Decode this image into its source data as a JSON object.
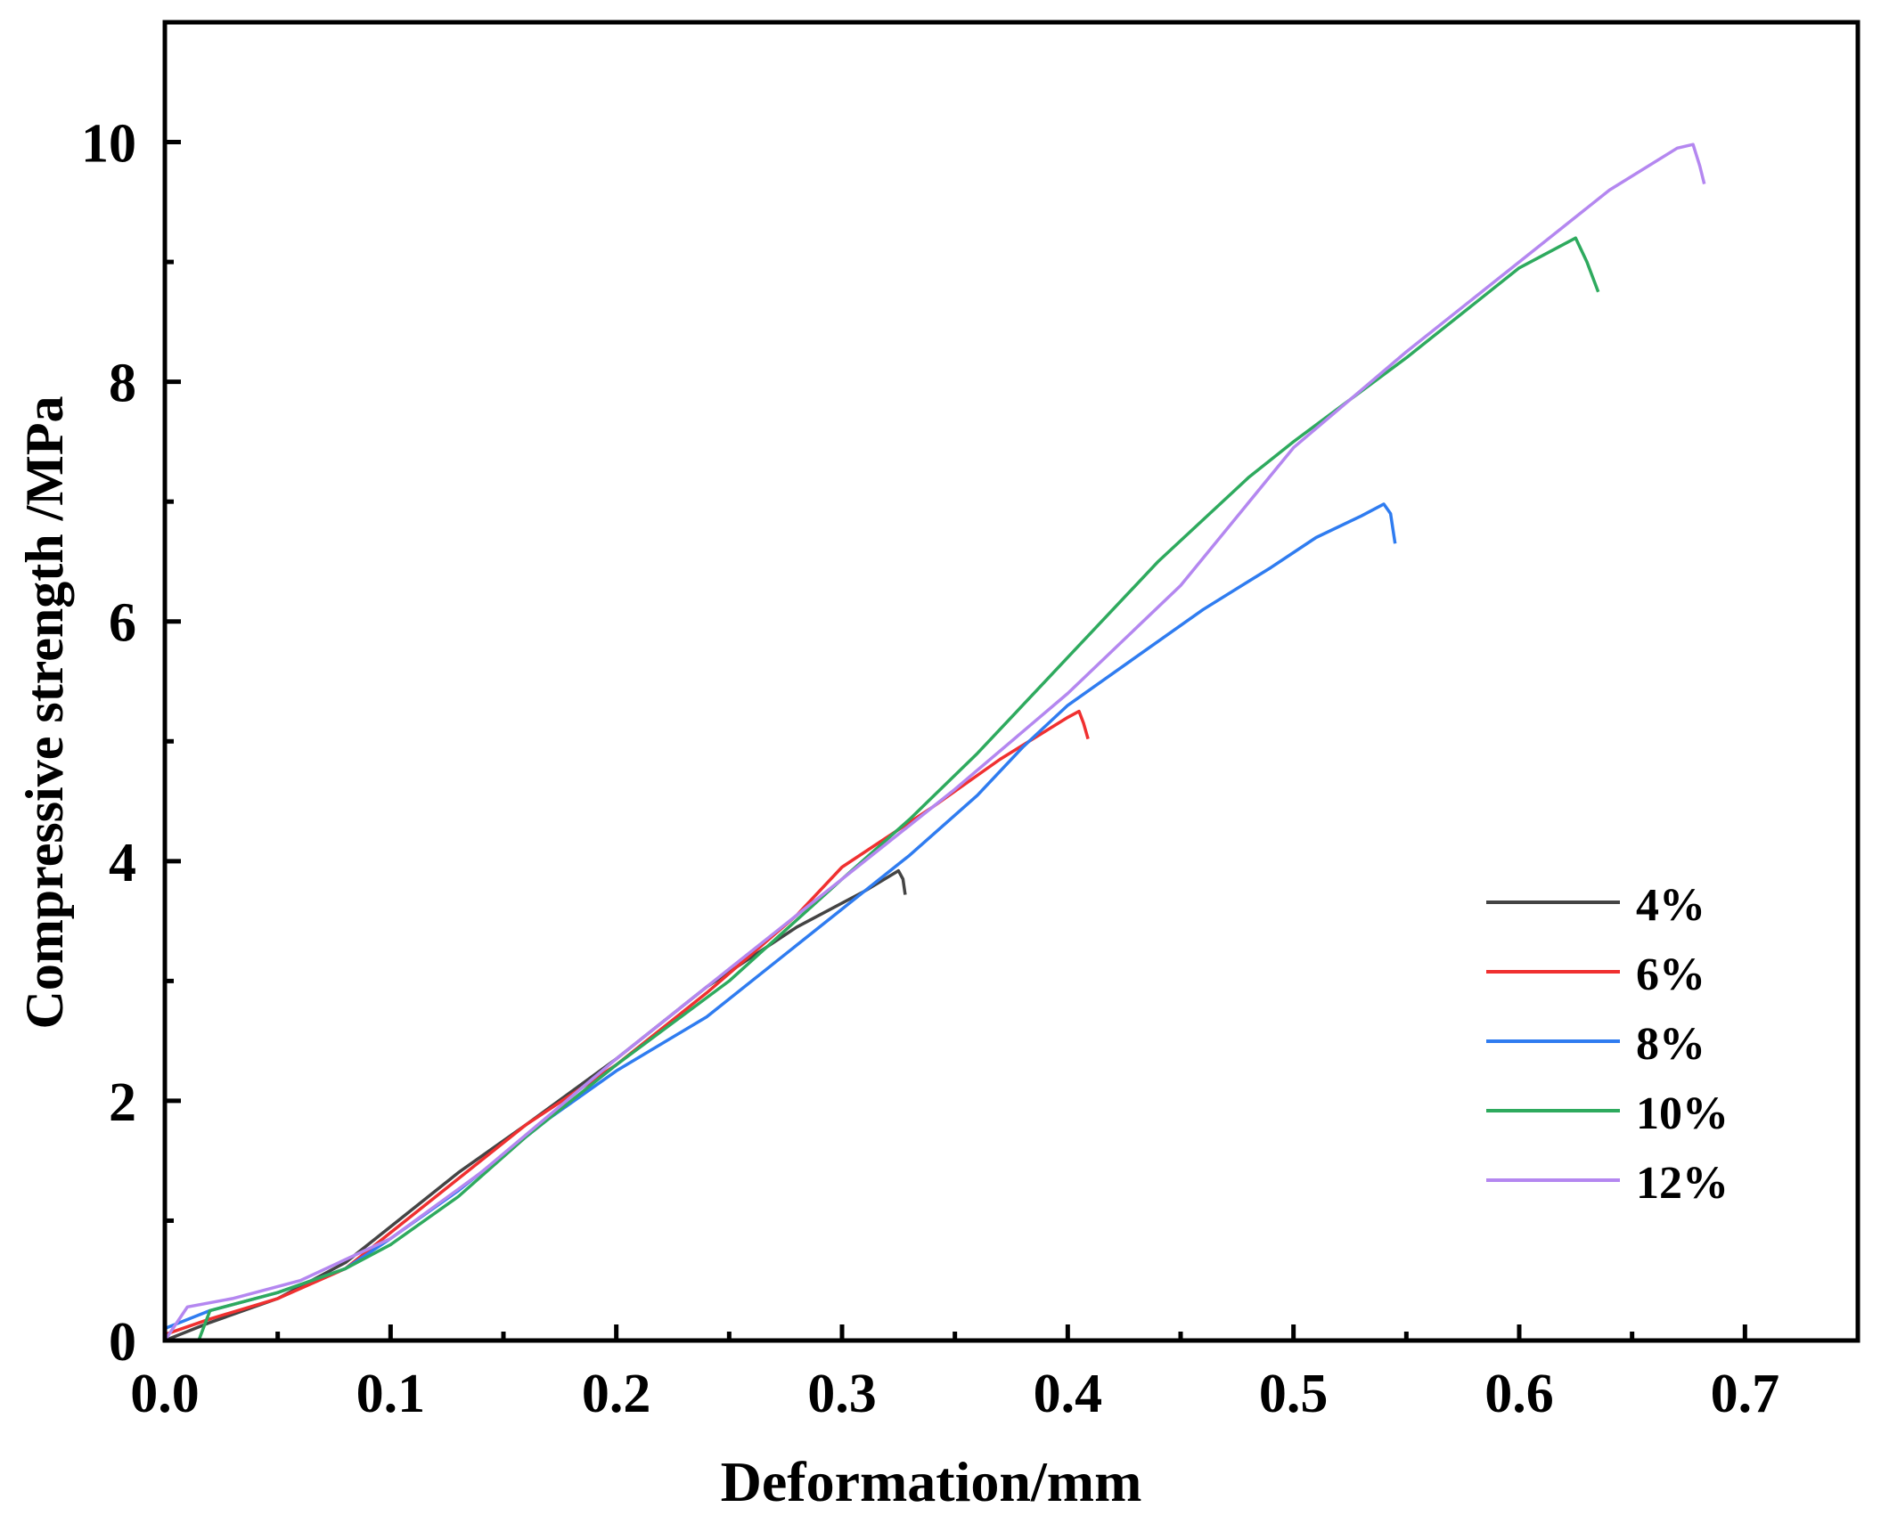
{
  "chart_data": {
    "type": "line",
    "xlabel": "Deformation/mm",
    "ylabel": "Compressive strength /MPa",
    "xlim": [
      0.0,
      0.75
    ],
    "ylim": [
      0,
      11
    ],
    "x_ticks": [
      "0.0",
      "0.1",
      "0.2",
      "0.3",
      "0.4",
      "0.5",
      "0.6",
      "0.7"
    ],
    "y_ticks": [
      "0",
      "2",
      "4",
      "6",
      "8",
      "10"
    ],
    "legend_position": "bottom-right",
    "series": [
      {
        "name": "4%",
        "color": "#444444",
        "x": [
          0.0,
          0.02,
          0.05,
          0.08,
          0.1,
          0.13,
          0.16,
          0.2,
          0.24,
          0.28,
          0.31,
          0.325,
          0.327,
          0.328
        ],
        "y": [
          0.0,
          0.15,
          0.35,
          0.65,
          0.95,
          1.4,
          1.8,
          2.35,
          2.95,
          3.45,
          3.75,
          3.92,
          3.85,
          3.72
        ]
      },
      {
        "name": "6%",
        "color": "#f03030",
        "x": [
          0.0,
          0.02,
          0.05,
          0.08,
          0.1,
          0.13,
          0.16,
          0.2,
          0.24,
          0.28,
          0.3,
          0.34,
          0.37,
          0.4,
          0.405,
          0.407,
          0.409
        ],
        "y": [
          0.05,
          0.18,
          0.35,
          0.6,
          0.9,
          1.35,
          1.8,
          2.3,
          2.9,
          3.55,
          3.95,
          4.45,
          4.85,
          5.2,
          5.25,
          5.15,
          5.02
        ]
      },
      {
        "name": "8%",
        "color": "#2f7cf0",
        "x": [
          0.0,
          0.02,
          0.05,
          0.08,
          0.1,
          0.13,
          0.17,
          0.2,
          0.24,
          0.28,
          0.3,
          0.33,
          0.36,
          0.38,
          0.4,
          0.43,
          0.46,
          0.49,
          0.51,
          0.53,
          0.54,
          0.543,
          0.545
        ],
        "y": [
          0.1,
          0.25,
          0.4,
          0.6,
          0.85,
          1.25,
          1.85,
          2.25,
          2.7,
          3.3,
          3.6,
          4.05,
          4.55,
          4.95,
          5.3,
          5.7,
          6.1,
          6.45,
          6.7,
          6.88,
          6.98,
          6.9,
          6.65
        ]
      },
      {
        "name": "10%",
        "color": "#2eaa5e",
        "x": [
          0.01,
          0.015,
          0.02,
          0.05,
          0.08,
          0.1,
          0.13,
          0.16,
          0.2,
          0.25,
          0.3,
          0.33,
          0.36,
          0.4,
          0.44,
          0.48,
          0.5,
          0.55,
          0.6,
          0.625,
          0.63,
          0.635
        ],
        "y": [
          0.0,
          0.0,
          0.25,
          0.4,
          0.6,
          0.8,
          1.2,
          1.7,
          2.3,
          3.0,
          3.85,
          4.35,
          4.9,
          5.7,
          6.5,
          7.2,
          7.5,
          8.2,
          8.95,
          9.2,
          9.0,
          8.75
        ]
      },
      {
        "name": "12%",
        "color": "#b487f0",
        "x": [
          0.0,
          0.01,
          0.03,
          0.06,
          0.1,
          0.14,
          0.2,
          0.25,
          0.3,
          0.35,
          0.4,
          0.45,
          0.5,
          0.55,
          0.6,
          0.64,
          0.67,
          0.677,
          0.68,
          0.682
        ],
        "y": [
          0.0,
          0.28,
          0.35,
          0.5,
          0.85,
          1.4,
          2.35,
          3.1,
          3.85,
          4.6,
          5.4,
          6.3,
          7.45,
          8.25,
          9.0,
          9.6,
          9.95,
          9.98,
          9.8,
          9.65
        ]
      }
    ]
  }
}
